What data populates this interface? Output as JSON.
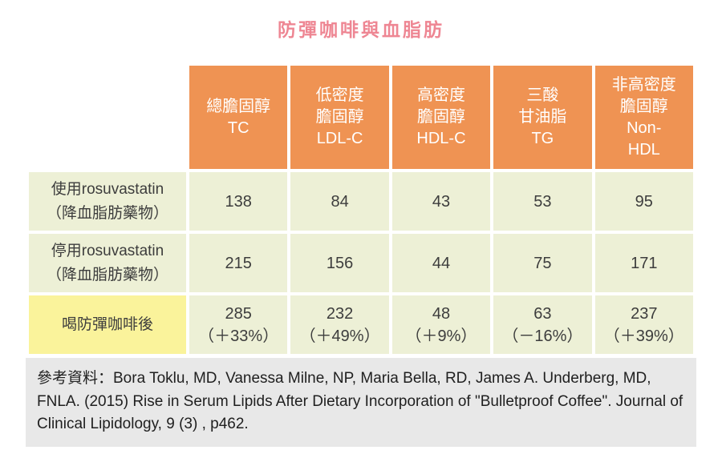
{
  "page": {
    "title": "防彈咖啡與血脂肪"
  },
  "chart_data": {
    "type": "table",
    "title": "防彈咖啡與血脂肪",
    "columns": [
      {
        "label": "總膽固醇\nTC"
      },
      {
        "label": "低密度\n膽固醇\nLDL-C"
      },
      {
        "label": "高密度\n膽固醇\nHDL-C"
      },
      {
        "label": "三酸\n甘油脂\nTG"
      },
      {
        "label": "非高密度\n膽固醇\nNon-\nHDL"
      }
    ],
    "rows": [
      {
        "label": "使用rosuvastatin\n（降血脂肪藥物）",
        "values": [
          "138",
          "84",
          "43",
          "53",
          "95"
        ]
      },
      {
        "label": "停用rosuvastatin\n（降血脂肪藥物）",
        "values": [
          "215",
          "156",
          "44",
          "75",
          "171"
        ]
      },
      {
        "label": "喝防彈咖啡後",
        "values": [
          "285\n（＋33%）",
          "232\n（＋49%）",
          "48\n（＋9%）",
          "63\n（－16%）",
          "237\n（＋39%）"
        ]
      }
    ]
  },
  "footer": {
    "reference": "參考資料：Bora Toklu, MD, Vanessa Milne, NP, Maria Bella, RD, James A. Underberg, MD, FNLA. (2015) Rise in Serum Lipids After Dietary Incorporation of \"Bulletproof Coffee\". Journal of Clinical Lipidology, 9 (3) , p462."
  },
  "colors": {
    "title_pink": "#ee8693",
    "header_orange": "#ef9353",
    "header_text": "#ffffff",
    "cell_green": "#edf0d6",
    "highlight_yellow": "#faf39b",
    "footer_gray": "#e8e8e8",
    "text_dark": "#3d3d3d"
  }
}
